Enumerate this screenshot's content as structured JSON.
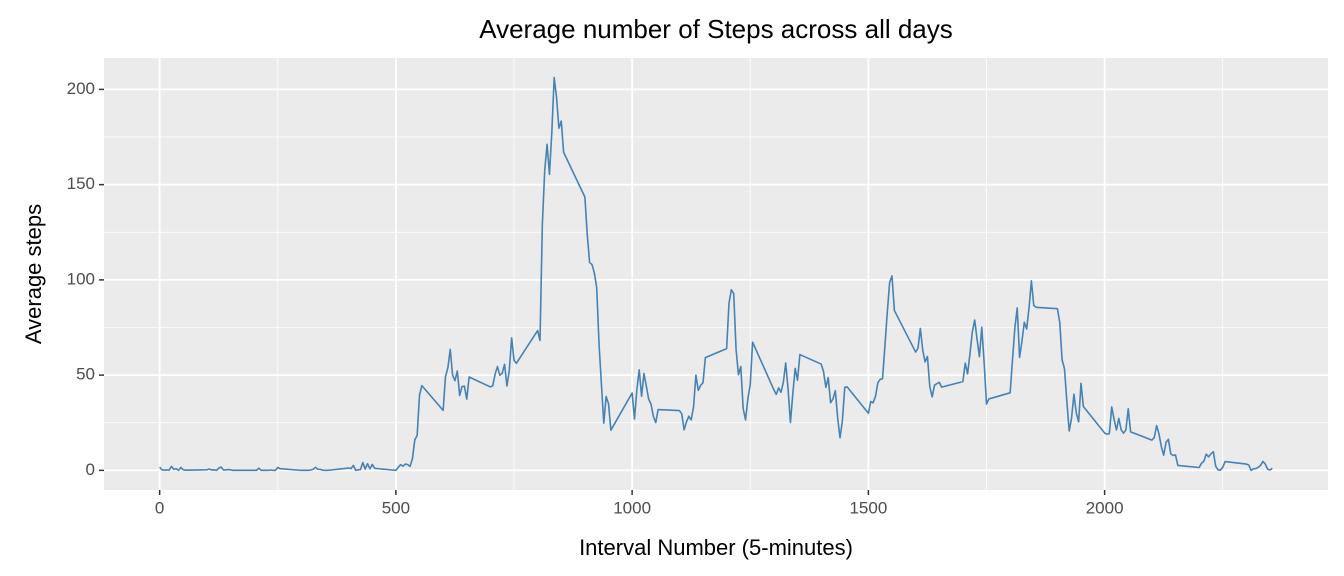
{
  "chart_data": {
    "type": "line",
    "title": "Average number of Steps across all days",
    "x_label": "Interval Number (5-minutes)",
    "y_label": "Average steps",
    "xlim": [
      -117.75,
      2472.75
    ],
    "xticks": [
      0,
      500,
      1000,
      1500,
      2000
    ],
    "xminorticks": [
      250,
      750,
      1250,
      1750,
      2250
    ],
    "ylim": [
      -10.31,
      216.48
    ],
    "yticks": [
      0,
      50,
      100,
      150,
      200
    ],
    "yminorticks": [
      25,
      75,
      125,
      175
    ],
    "grid": true,
    "series": [
      {
        "color": "#4682b4",
        "x": [
          0,
          5,
          10,
          15,
          20,
          25,
          30,
          35,
          40,
          45,
          50,
          55,
          100,
          105,
          110,
          115,
          120,
          125,
          130,
          135,
          140,
          145,
          150,
          155,
          200,
          205,
          210,
          215,
          220,
          225,
          230,
          235,
          240,
          245,
          250,
          255,
          300,
          305,
          310,
          315,
          320,
          325,
          330,
          335,
          340,
          345,
          350,
          355,
          400,
          405,
          410,
          415,
          420,
          425,
          430,
          435,
          440,
          445,
          450,
          455,
          500,
          505,
          510,
          515,
          520,
          525,
          530,
          535,
          540,
          545,
          550,
          555,
          600,
          605,
          610,
          615,
          620,
          625,
          630,
          635,
          640,
          645,
          650,
          655,
          700,
          705,
          710,
          715,
          720,
          725,
          730,
          735,
          740,
          745,
          750,
          755,
          800,
          805,
          810,
          815,
          820,
          825,
          830,
          835,
          840,
          845,
          850,
          855,
          900,
          905,
          910,
          915,
          920,
          925,
          930,
          935,
          940,
          945,
          950,
          955,
          1000,
          1005,
          1010,
          1015,
          1020,
          1025,
          1030,
          1035,
          1040,
          1045,
          1050,
          1055,
          1100,
          1105,
          1110,
          1115,
          1120,
          1125,
          1130,
          1135,
          1140,
          1145,
          1150,
          1155,
          1200,
          1205,
          1210,
          1215,
          1220,
          1225,
          1230,
          1235,
          1240,
          1245,
          1250,
          1255,
          1300,
          1305,
          1310,
          1315,
          1320,
          1325,
          1330,
          1335,
          1340,
          1345,
          1350,
          1355,
          1400,
          1405,
          1410,
          1415,
          1420,
          1425,
          1430,
          1435,
          1440,
          1445,
          1450,
          1455,
          1500,
          1505,
          1510,
          1515,
          1520,
          1525,
          1530,
          1535,
          1540,
          1545,
          1550,
          1555,
          1600,
          1605,
          1610,
          1615,
          1620,
          1625,
          1630,
          1635,
          1640,
          1645,
          1650,
          1655,
          1700,
          1705,
          1710,
          1715,
          1720,
          1725,
          1730,
          1735,
          1740,
          1745,
          1750,
          1755,
          1800,
          1805,
          1810,
          1815,
          1820,
          1825,
          1830,
          1835,
          1840,
          1845,
          1850,
          1855,
          1900,
          1905,
          1910,
          1915,
          1920,
          1925,
          1930,
          1935,
          1940,
          1945,
          1950,
          1955,
          2000,
          2005,
          2010,
          2015,
          2020,
          2025,
          2030,
          2035,
          2040,
          2045,
          2050,
          2055,
          2100,
          2105,
          2110,
          2115,
          2120,
          2125,
          2130,
          2135,
          2140,
          2145,
          2150,
          2155,
          2200,
          2205,
          2210,
          2215,
          2220,
          2225,
          2230,
          2235,
          2240,
          2245,
          2250,
          2255,
          2300,
          2305,
          2310,
          2315,
          2320,
          2325,
          2330,
          2335,
          2340,
          2345,
          2350,
          2355
        ],
        "values": [
          1.7,
          0.3,
          0.1,
          0.2,
          0.1,
          2.1,
          0.5,
          0.9,
          0,
          1.5,
          0.3,
          0.1,
          0.3,
          0.7,
          0.2,
          0.3,
          0,
          1.1,
          1.8,
          0.2,
          0.2,
          0.4,
          0.3,
          0,
          0,
          0,
          1.1,
          0,
          0,
          0.1,
          0,
          0.2,
          0,
          0,
          1.5,
          0.9,
          0,
          0,
          0,
          0,
          0.2,
          0.6,
          1.6,
          0.6,
          0.5,
          0.1,
          0,
          0,
          1.2,
          0.9,
          2.6,
          0,
          0.3,
          0.4,
          4.1,
          0.7,
          3.5,
          0.8,
          3.1,
          1.1,
          0,
          1.6,
          3,
          2.2,
          3.3,
          3,
          2.1,
          6.1,
          16,
          18.3,
          39.5,
          44.5,
          31.5,
          49.3,
          53.8,
          63.5,
          50,
          47.1,
          52.2,
          39.3,
          44,
          44.2,
          37.4,
          49,
          43.8,
          44.4,
          50.5,
          54.5,
          49.9,
          51,
          55.7,
          44.3,
          52.3,
          69.5,
          57.8,
          56.2,
          73.4,
          68.2,
          129.4,
          157.5,
          171.2,
          155.4,
          177.3,
          206.2,
          195.9,
          179.6,
          183.4,
          167,
          143.5,
          124,
          109.1,
          108.1,
          103.7,
          95.97,
          66.2,
          45.2,
          24.8,
          38.8,
          34.98,
          21.1,
          40.6,
          26.98,
          42.4,
          52.7,
          38.9,
          50.8,
          44.3,
          37.4,
          34.7,
          28.3,
          25.1,
          31.9,
          31.4,
          29.7,
          21.3,
          25.5,
          28.4,
          26.5,
          33.4,
          49.98,
          42,
          44.6,
          46,
          59.2,
          63.9,
          87.7,
          94.8,
          92.8,
          63.4,
          50.2,
          54.5,
          32.4,
          26.5,
          37.7,
          45.1,
          67.3,
          42.3,
          39.9,
          43.3,
          40.98,
          46.2,
          56.4,
          42.8,
          25.1,
          39.96,
          53.5,
          47.3,
          60.8,
          55.8,
          51.96,
          43.6,
          48.7,
          35.5,
          37.5,
          41.8,
          27.5,
          17.1,
          26.1,
          43.6,
          43.8,
          30,
          36.1,
          35.5,
          38.8,
          45.96,
          47.8,
          48.1,
          65.3,
          82.9,
          98.7,
          102.1,
          83.96,
          62.1,
          64.1,
          74.5,
          63.2,
          56.9,
          59.8,
          43.9,
          38.6,
          44.7,
          45.5,
          46.2,
          43.7,
          46.6,
          56.3,
          50.7,
          61.2,
          72.7,
          78.9,
          68.9,
          59.7,
          75.1,
          56.5,
          34.8,
          37.5,
          40.7,
          58,
          74.7,
          85.3,
          59.3,
          67.8,
          77.7,
          74.2,
          85.3,
          99.5,
          86.6,
          85.6,
          84.9,
          77.8,
          58,
          53.4,
          36.3,
          20.7,
          27.4,
          40,
          30.2,
          25.5,
          45.7,
          33.5,
          19.6,
          19,
          19.3,
          33.3,
          26.8,
          21.2,
          27.3,
          21.3,
          19.5,
          21.3,
          32.3,
          20.2,
          15.9,
          17.2,
          23.5,
          19.2,
          12.5,
          8,
          14.7,
          16.3,
          8.7,
          7.8,
          8.1,
          2.6,
          1.5,
          3.7,
          4.8,
          8.5,
          7.1,
          8.7,
          9.8,
          2.2,
          0.3,
          0.1,
          1.6,
          4.6,
          3.3,
          2.8,
          0,
          0.8,
          0.96,
          1.6,
          2.6,
          4.7,
          3.3,
          0.6,
          0.2,
          1.1
        ]
      }
    ]
  }
}
